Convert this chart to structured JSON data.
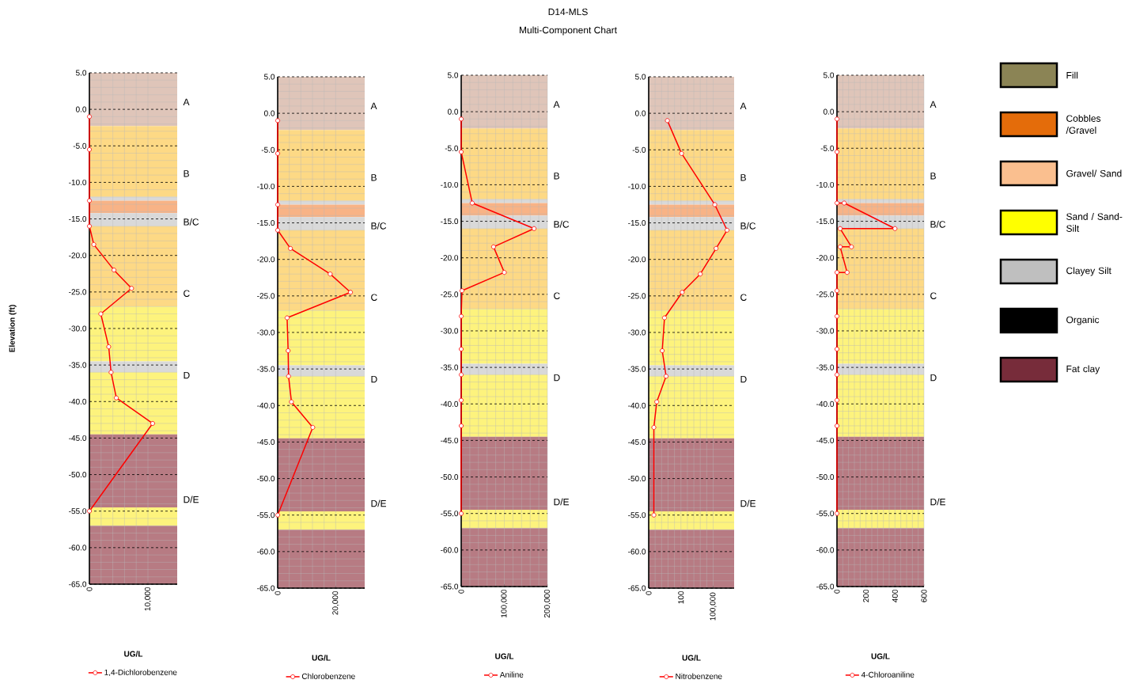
{
  "chart_data": [
    {
      "type": "line",
      "xlabel": "UG/L",
      "ylabel": "Elevation (ft)",
      "grid": true,
      "legend": "bottom",
      "marker": "circle",
      "line_style": "solid",
      "xlim": [
        0,
        15000
      ],
      "xticks": [
        0,
        {
          "value": 10000,
          "label": "10,000"
        }
      ],
      "ylim": [
        -65,
        5
      ],
      "yticks": [
        {
          "value": 5,
          "label": "5.0"
        },
        {
          "value": 0,
          "label": "0.0"
        },
        {
          "value": -5,
          "label": "-5.0"
        },
        {
          "value": -10,
          "label": "-10.0"
        },
        {
          "value": -15,
          "label": "-15.0"
        },
        {
          "value": -20,
          "label": "-20.0"
        },
        {
          "value": -25,
          "label": "-25.0"
        },
        {
          "value": -30,
          "label": "-30.0"
        },
        {
          "value": -35,
          "label": "-35.0"
        },
        {
          "value": -40,
          "label": "-40.0"
        },
        {
          "value": -45,
          "label": "-45.0"
        },
        {
          "value": -50,
          "label": "-50.0"
        },
        {
          "value": -55,
          "label": "-55.0"
        },
        {
          "value": -60,
          "label": "-60.0"
        },
        {
          "value": -65,
          "label": "-65.0"
        }
      ],
      "bands": [
        {
          "axis": "y",
          "from": 5,
          "to": -2.3,
          "color": "#dfc5b9"
        },
        {
          "axis": "y",
          "from": -2.3,
          "to": -12,
          "color": "#fdd985"
        },
        {
          "axis": "y",
          "from": -12,
          "to": -12.5,
          "color": "#d9d9d9"
        },
        {
          "axis": "y",
          "from": -12.5,
          "to": -14.2,
          "color": "#f8b386"
        },
        {
          "axis": "y",
          "from": -14.2,
          "to": -16,
          "color": "#d9d9d9"
        },
        {
          "axis": "y",
          "from": -16,
          "to": -27,
          "color": "#fdd985"
        },
        {
          "axis": "y",
          "from": -27,
          "to": -34.5,
          "color": "#fdf37d"
        },
        {
          "axis": "y",
          "from": -34.5,
          "to": -36,
          "color": "#d9d9d9"
        },
        {
          "axis": "y",
          "from": -36,
          "to": -44.5,
          "color": "#fdf37d"
        },
        {
          "axis": "y",
          "from": -44.5,
          "to": -54.5,
          "color": "#b77b83"
        },
        {
          "axis": "y",
          "from": -54.5,
          "to": -57,
          "color": "#fdf37d"
        },
        {
          "axis": "y",
          "from": -57,
          "to": -65,
          "color": "#b77b83"
        }
      ],
      "annotations": [
        "A",
        "B",
        "B/C",
        "C",
        "D",
        "D/E"
      ],
      "series": [
        {
          "name": "1,4-Dichlorobenzene",
          "color": "#ff0000",
          "x": [
            0,
            0,
            0,
            0,
            750,
            4200,
            7200,
            1950,
            3300,
            3700,
            4600,
            10800,
            0
          ],
          "values": [
            -1,
            -5.5,
            -12.5,
            -16,
            -18.5,
            -22,
            -24.5,
            -28,
            -32.5,
            -36,
            -39.5,
            -43,
            -55
          ]
        }
      ]
    },
    {
      "type": "line",
      "xlabel": "UG/L",
      "grid": true,
      "legend": "bottom",
      "marker": "circle",
      "line_style": "solid",
      "xlim": [
        0,
        30000
      ],
      "xticks": [
        0,
        {
          "value": 20000,
          "label": "20,000"
        }
      ],
      "ylim": [
        -65,
        5
      ],
      "yticks": [
        {
          "value": 5,
          "label": "5.0"
        },
        {
          "value": 0,
          "label": "0.0"
        },
        {
          "value": -5,
          "label": "-5.0"
        },
        {
          "value": -10,
          "label": "-10.0"
        },
        {
          "value": -15,
          "label": "-15.0"
        },
        {
          "value": -20,
          "label": "-20.0"
        },
        {
          "value": -25,
          "label": "-25.0"
        },
        {
          "value": -30,
          "label": "-30.0"
        },
        {
          "value": -35,
          "label": "-35.0"
        },
        {
          "value": -40,
          "label": "-40.0"
        },
        {
          "value": -45,
          "label": "-45.0"
        },
        {
          "value": -50,
          "label": "-50.0"
        },
        {
          "value": -55,
          "label": "-55.0"
        },
        {
          "value": -60,
          "label": "-60.0"
        },
        {
          "value": -65,
          "label": "-65.0"
        }
      ],
      "bands": [
        {
          "axis": "y",
          "from": 5,
          "to": -2.3,
          "color": "#dfc5b9"
        },
        {
          "axis": "y",
          "from": -2.3,
          "to": -12,
          "color": "#fdd985"
        },
        {
          "axis": "y",
          "from": -12,
          "to": -12.5,
          "color": "#d9d9d9"
        },
        {
          "axis": "y",
          "from": -12.5,
          "to": -14.2,
          "color": "#f8b386"
        },
        {
          "axis": "y",
          "from": -14.2,
          "to": -16,
          "color": "#d9d9d9"
        },
        {
          "axis": "y",
          "from": -16,
          "to": -27,
          "color": "#fdd985"
        },
        {
          "axis": "y",
          "from": -27,
          "to": -34.5,
          "color": "#fdf37d"
        },
        {
          "axis": "y",
          "from": -34.5,
          "to": -36,
          "color": "#d9d9d9"
        },
        {
          "axis": "y",
          "from": -36,
          "to": -44.5,
          "color": "#fdf37d"
        },
        {
          "axis": "y",
          "from": -44.5,
          "to": -54.5,
          "color": "#b77b83"
        },
        {
          "axis": "y",
          "from": -54.5,
          "to": -57,
          "color": "#fdf37d"
        },
        {
          "axis": "y",
          "from": -57,
          "to": -65,
          "color": "#b77b83"
        }
      ],
      "annotations": [
        "A",
        "B",
        "B/C",
        "C",
        "D",
        "D/E"
      ],
      "series": [
        {
          "name": "Chlorobenzene",
          "color": "#ff0000",
          "x": [
            0,
            0,
            0,
            0,
            4400,
            18100,
            25100,
            3250,
            3600,
            3750,
            4750,
            12100,
            0
          ],
          "values": [
            -1,
            -5.5,
            -12.5,
            -16,
            -18.5,
            -22,
            -24.5,
            -28,
            -32.5,
            -36,
            -39.5,
            -43,
            -55
          ]
        }
      ]
    },
    {
      "type": "line",
      "xlabel": "UG/L",
      "grid": true,
      "legend": "bottom",
      "marker": "circle",
      "line_style": "solid",
      "title": "D14-MLS",
      "subtitle": "Multi-Component Chart",
      "xlim": [
        0,
        200000
      ],
      "xticks": [
        0,
        {
          "value": 100000,
          "label": "100,000"
        },
        {
          "value": 200000,
          "label": "200,000"
        }
      ],
      "ylim": [
        -65,
        5
      ],
      "yticks": [
        {
          "value": 5,
          "label": "5.0"
        },
        {
          "value": 0,
          "label": "0.0"
        },
        {
          "value": -5,
          "label": "-5.0"
        },
        {
          "value": -10,
          "label": "-10.0"
        },
        {
          "value": -15,
          "label": "-15.0"
        },
        {
          "value": -20,
          "label": "-20.0"
        },
        {
          "value": -25,
          "label": "-25.0"
        },
        {
          "value": -30,
          "label": "-30.0"
        },
        {
          "value": -35,
          "label": "-35.0"
        },
        {
          "value": -40,
          "label": "-40.0"
        },
        {
          "value": -45,
          "label": "-45.0"
        },
        {
          "value": -50,
          "label": "-50.0"
        },
        {
          "value": -55,
          "label": "-55.0"
        },
        {
          "value": -60,
          "label": "-60.0"
        },
        {
          "value": -65,
          "label": "-65.0"
        }
      ],
      "bands": [
        {
          "axis": "y",
          "from": 5,
          "to": -2.3,
          "color": "#dfc5b9"
        },
        {
          "axis": "y",
          "from": -2.3,
          "to": -12,
          "color": "#fdd985"
        },
        {
          "axis": "y",
          "from": -12,
          "to": -12.5,
          "color": "#d9d9d9"
        },
        {
          "axis": "y",
          "from": -12.5,
          "to": -14.2,
          "color": "#f8b386"
        },
        {
          "axis": "y",
          "from": -14.2,
          "to": -16,
          "color": "#d9d9d9"
        },
        {
          "axis": "y",
          "from": -16,
          "to": -27,
          "color": "#fdd985"
        },
        {
          "axis": "y",
          "from": -27,
          "to": -34.5,
          "color": "#fdf37d"
        },
        {
          "axis": "y",
          "from": -34.5,
          "to": -36,
          "color": "#d9d9d9"
        },
        {
          "axis": "y",
          "from": -36,
          "to": -44.5,
          "color": "#fdf37d"
        },
        {
          "axis": "y",
          "from": -44.5,
          "to": -54.5,
          "color": "#b77b83"
        },
        {
          "axis": "y",
          "from": -54.5,
          "to": -57,
          "color": "#fdf37d"
        },
        {
          "axis": "y",
          "from": -57,
          "to": -65,
          "color": "#b77b83"
        }
      ],
      "annotations": [
        "A",
        "B",
        "B/C",
        "C",
        "D",
        "D/E"
      ],
      "series": [
        {
          "name": "Aniline",
          "color": "#ff0000",
          "x": [
            0,
            0,
            25600,
            169000,
            75000,
            100000,
            1700,
            0,
            0,
            0,
            0,
            0,
            0
          ],
          "values": [
            -1,
            -5.5,
            -12.5,
            -16,
            -18.5,
            -22,
            -24.5,
            -28,
            -32.5,
            -36,
            -39.5,
            -43,
            -55
          ]
        }
      ]
    },
    {
      "type": "line",
      "xlabel": "UG/L",
      "grid": true,
      "legend": "bottom",
      "marker": "circle",
      "line_style": "solid",
      "xlim": [
        0,
        265
      ],
      "xticks": [
        0,
        100,
        {
          "value": 200,
          "label": null
        }
      ],
      "ylim": [
        -65,
        5
      ],
      "yticks": [
        {
          "value": 5,
          "label": "5.0"
        },
        {
          "value": 0,
          "label": "0.0"
        },
        {
          "value": -5,
          "label": "-5.0"
        },
        {
          "value": -10,
          "label": "-10.0"
        },
        {
          "value": -15,
          "label": "-15.0"
        },
        {
          "value": -20,
          "label": "-20.0"
        },
        {
          "value": -25,
          "label": "-25.0"
        },
        {
          "value": -30,
          "label": "-30.0"
        },
        {
          "value": -35,
          "label": "-35.0"
        },
        {
          "value": -40,
          "label": "-40.0"
        },
        {
          "value": -45,
          "label": "-45.0"
        },
        {
          "value": -50,
          "label": "-50.0"
        },
        {
          "value": -55,
          "label": "-55.0"
        },
        {
          "value": -60,
          "label": "-60.0"
        },
        {
          "value": -65,
          "label": "-65.0"
        }
      ],
      "bands": [
        {
          "axis": "y",
          "from": 5,
          "to": -2.3,
          "color": "#dfc5b9"
        },
        {
          "axis": "y",
          "from": -2.3,
          "to": -12,
          "color": "#fdd985"
        },
        {
          "axis": "y",
          "from": -12,
          "to": -12.5,
          "color": "#d9d9d9"
        },
        {
          "axis": "y",
          "from": -12.5,
          "to": -14.2,
          "color": "#f8b386"
        },
        {
          "axis": "y",
          "from": -14.2,
          "to": -16,
          "color": "#d9d9d9"
        },
        {
          "axis": "y",
          "from": -16,
          "to": -27,
          "color": "#fdd985"
        },
        {
          "axis": "y",
          "from": -27,
          "to": -34.5,
          "color": "#fdf37d"
        },
        {
          "axis": "y",
          "from": -34.5,
          "to": -36,
          "color": "#d9d9d9"
        },
        {
          "axis": "y",
          "from": -36,
          "to": -44.5,
          "color": "#fdf37d"
        },
        {
          "axis": "y",
          "from": -44.5,
          "to": -54.5,
          "color": "#b77b83"
        },
        {
          "axis": "y",
          "from": -54.5,
          "to": -57,
          "color": "#fdf37d"
        },
        {
          "axis": "y",
          "from": -57,
          "to": -65,
          "color": "#b77b83"
        }
      ],
      "annotations": [
        "A",
        "B",
        "B/C",
        "C",
        "D",
        "D/E",
        "100,000"
      ],
      "series": [
        {
          "name": "Nitrobenzene",
          "color": "#ff0000",
          "x": [
            58,
            102,
            205,
            243,
            209,
            160,
            104,
            49,
            42,
            54,
            25,
            16,
            16
          ],
          "values": [
            -1,
            -5.5,
            -12.5,
            -16,
            -18.5,
            -22,
            -24.5,
            -28,
            -32.5,
            -36,
            -39.5,
            -43,
            -55
          ]
        }
      ]
    },
    {
      "type": "line",
      "xlabel": "UG/L",
      "grid": true,
      "legend": "bottom",
      "marker": "circle",
      "line_style": "solid",
      "xlim": [
        0,
        600
      ],
      "xticks": [
        0,
        200,
        400,
        600
      ],
      "ylim": [
        -65,
        5
      ],
      "yticks": [
        {
          "value": 5,
          "label": "5.0"
        },
        {
          "value": 0,
          "label": "0.0"
        },
        {
          "value": -5,
          "label": "-5.0"
        },
        {
          "value": -10,
          "label": "-10.0"
        },
        {
          "value": -15,
          "label": "-15.0"
        },
        {
          "value": -20,
          "label": "-20.0"
        },
        {
          "value": -25,
          "label": "-25.0"
        },
        {
          "value": -30,
          "label": "-30.0"
        },
        {
          "value": -35,
          "label": "-35.0"
        },
        {
          "value": -40,
          "label": "-40.0"
        },
        {
          "value": -45,
          "label": "-45.0"
        },
        {
          "value": -50,
          "label": "-50.0"
        },
        {
          "value": -55,
          "label": "-55.0"
        },
        {
          "value": -60,
          "label": "-60.0"
        },
        {
          "value": -65,
          "label": "-65.0"
        }
      ],
      "bands": [
        {
          "axis": "y",
          "from": 5,
          "to": -2.3,
          "color": "#dfc5b9"
        },
        {
          "axis": "y",
          "from": -2.3,
          "to": -12,
          "color": "#fdd985"
        },
        {
          "axis": "y",
          "from": -12,
          "to": -12.5,
          "color": "#d9d9d9"
        },
        {
          "axis": "y",
          "from": -12.5,
          "to": -14.2,
          "color": "#f8b386"
        },
        {
          "axis": "y",
          "from": -14.2,
          "to": -16,
          "color": "#d9d9d9"
        },
        {
          "axis": "y",
          "from": -16,
          "to": -27,
          "color": "#fdd985"
        },
        {
          "axis": "y",
          "from": -27,
          "to": -34.5,
          "color": "#fdf37d"
        },
        {
          "axis": "y",
          "from": -34.5,
          "to": -36,
          "color": "#d9d9d9"
        },
        {
          "axis": "y",
          "from": -36,
          "to": -44.5,
          "color": "#fdf37d"
        },
        {
          "axis": "y",
          "from": -44.5,
          "to": -54.5,
          "color": "#b77b83"
        },
        {
          "axis": "y",
          "from": -54.5,
          "to": -57,
          "color": "#fdf37d"
        },
        {
          "axis": "y",
          "from": -57,
          "to": -65,
          "color": "#b77b83"
        }
      ],
      "annotations": [
        "A",
        "B",
        "B/C",
        "C",
        "D",
        "D/E"
      ],
      "series": [
        {
          "name": "4-Chloroaniline",
          "color": "#ff0000",
          "x": [
            0,
            0,
            0,
            50,
            400,
            22,
            100,
            22,
            70,
            0,
            0,
            0,
            0,
            0,
            0,
            0,
            0
          ],
          "values": [
            -1,
            -5.5,
            -12.5,
            -12.5,
            -16,
            -16,
            -18.5,
            -18.5,
            -22,
            -22,
            -24.5,
            -28,
            -32.5,
            -36,
            -39.5,
            -43,
            -55
          ]
        }
      ]
    },
    {
      "type": "other",
      "categories": [
        "Fill",
        "Cobbles /Gravel",
        "Gravel/ Sand",
        "Sand / Sand-Silt",
        "Clayey Silt",
        "Organic",
        "Fat clay"
      ],
      "colors": [
        "#8b8455",
        "#e46c0a",
        "#fabf8f",
        "#ffff00",
        "#bfbfbf",
        "#000000",
        "#772c3a"
      ]
    }
  ]
}
